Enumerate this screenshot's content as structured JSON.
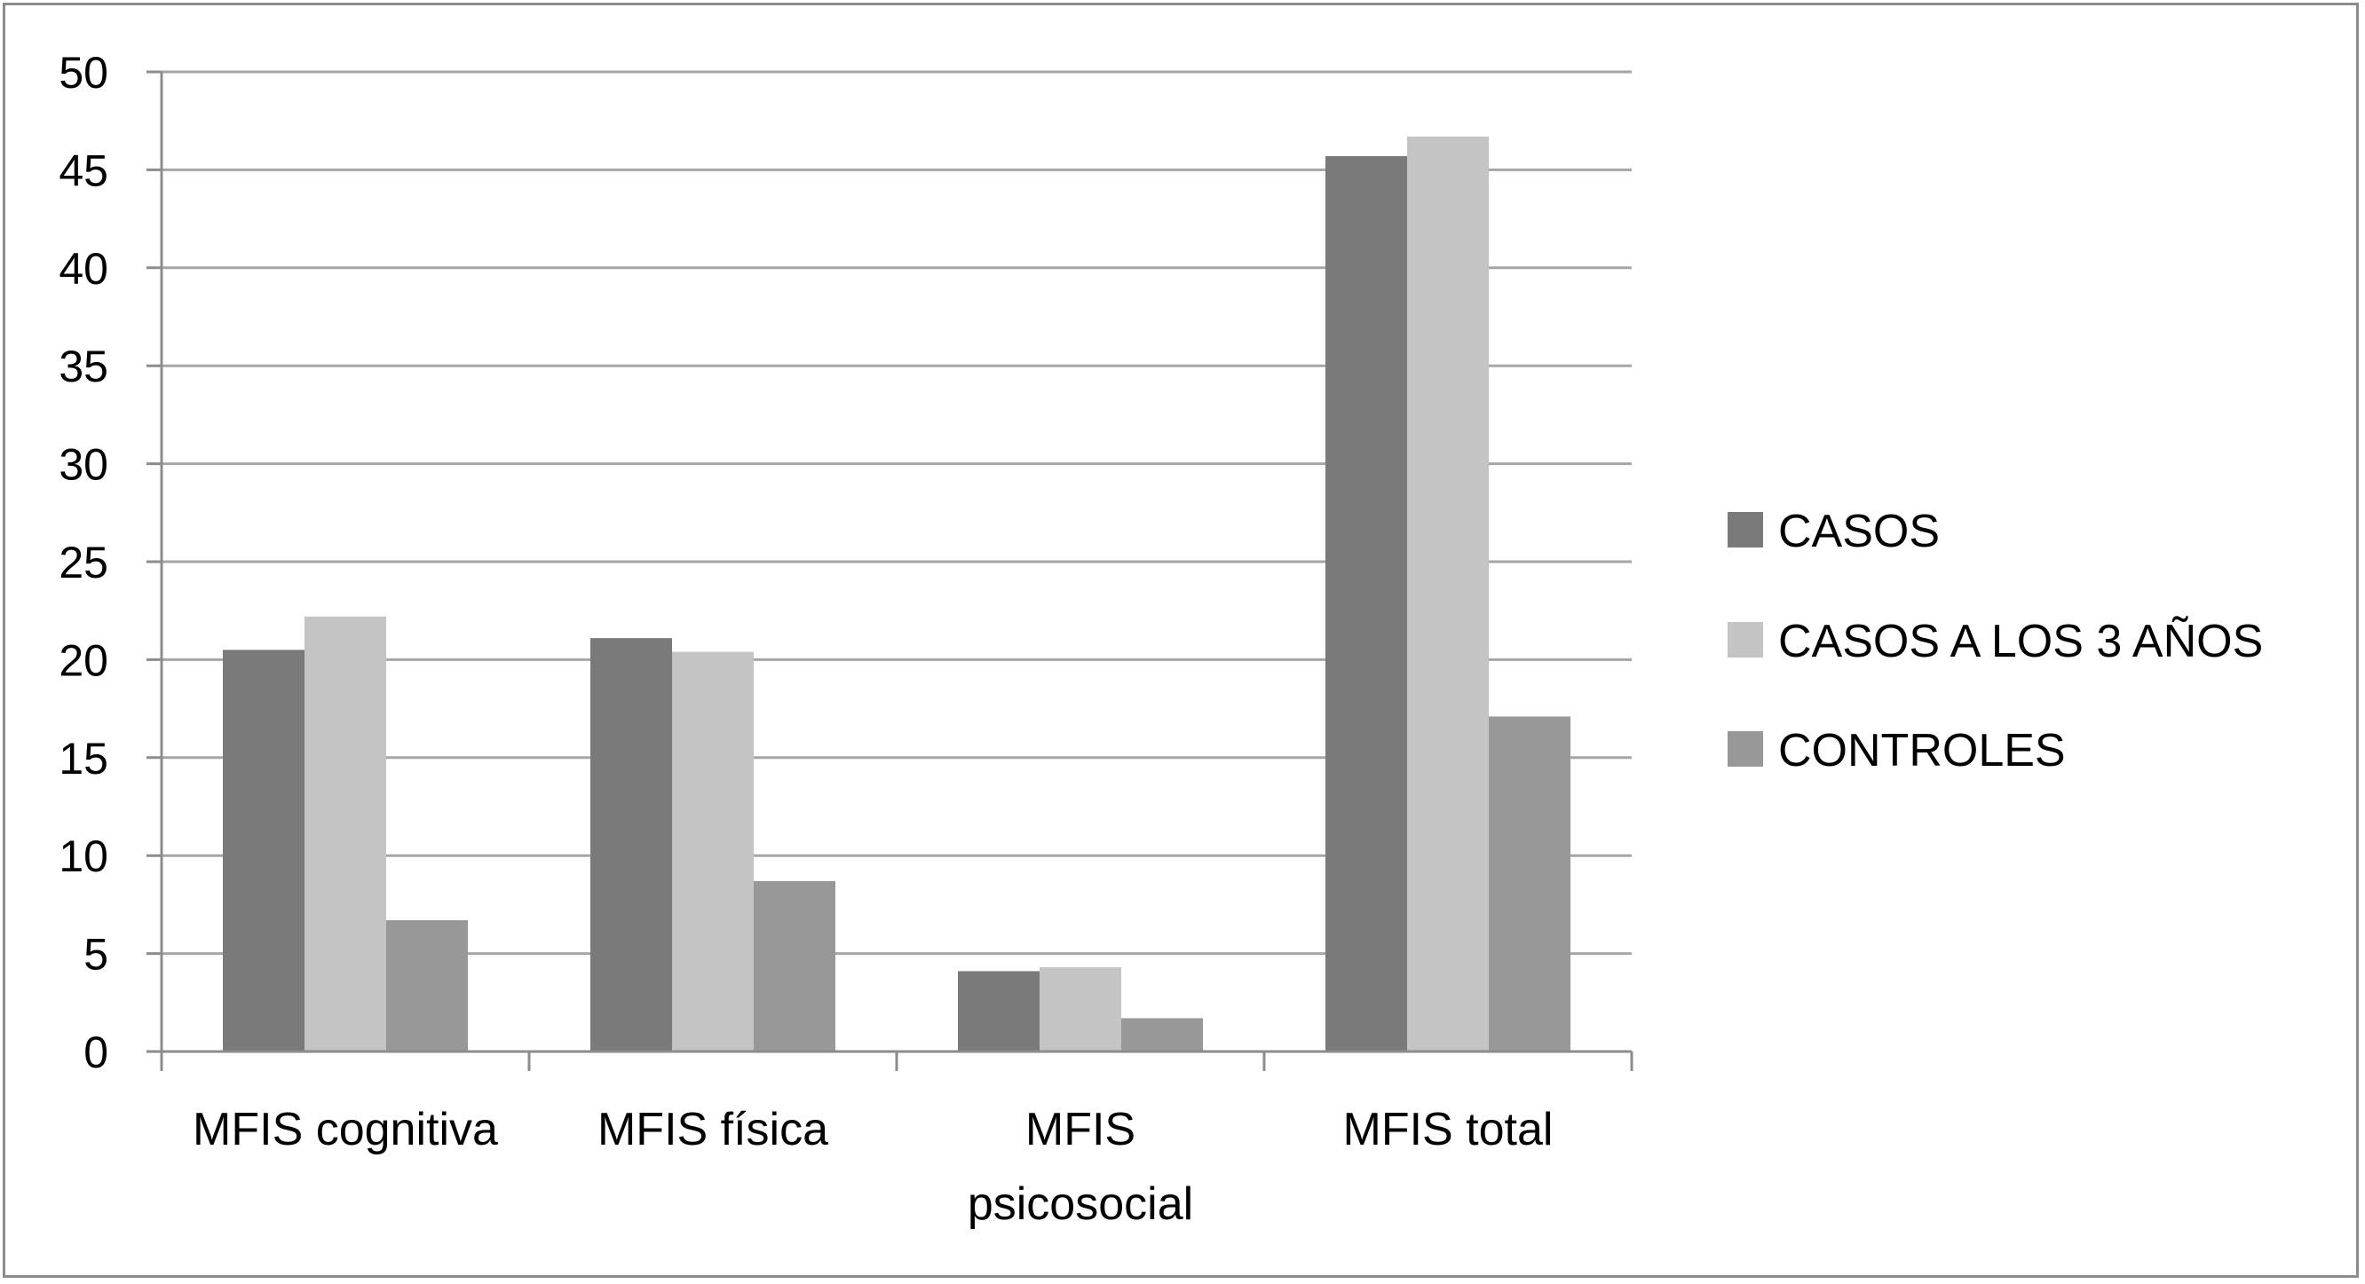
{
  "chart_data": {
    "type": "bar",
    "categories": [
      [
        "MFIS cognitiva"
      ],
      [
        "MFIS física"
      ],
      [
        "MFIS",
        "psicosocial"
      ],
      [
        "MFIS total"
      ]
    ],
    "series": [
      {
        "name": "CASOS",
        "values": [
          20.5,
          21.1,
          4.1,
          45.7
        ],
        "color": "#7a7a7a"
      },
      {
        "name": "CASOS A LOS 3 AÑOS",
        "values": [
          22.2,
          20.4,
          4.3,
          46.7
        ],
        "color": "#c4c4c4"
      },
      {
        "name": "CONTROLES",
        "values": [
          6.7,
          8.7,
          1.7,
          17.1
        ],
        "color": "#989898"
      }
    ],
    "ylim": [
      0,
      50
    ],
    "yticks": [
      0,
      5,
      10,
      15,
      20,
      25,
      30,
      35,
      40,
      45,
      50
    ],
    "grid": true,
    "gridline_color": "#a6a6a6",
    "axis_color": "#8c8c8c",
    "legend_position": "right",
    "title": "",
    "xlabel": "",
    "ylabel": ""
  }
}
